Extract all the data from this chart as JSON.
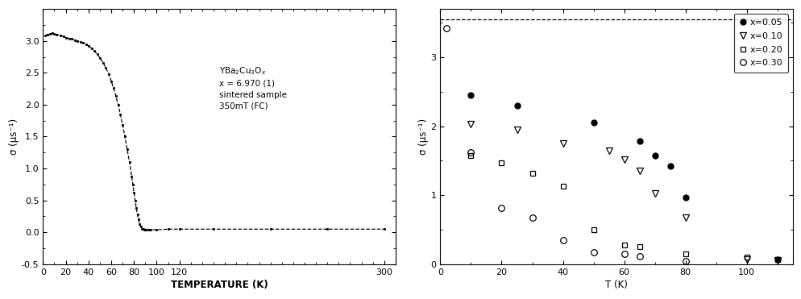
{
  "left_panel": {
    "xlabel": "TEMPERATURE (K)",
    "ylabel": "σ (μs⁻¹)",
    "xlim": [
      0,
      310
    ],
    "ylim": [
      -0.5,
      3.5
    ],
    "yticks": [
      -0.5,
      0.0,
      0.5,
      1.0,
      1.5,
      2.0,
      2.5,
      3.0
    ],
    "xticks": [
      0,
      20,
      40,
      60,
      80,
      100,
      120,
      300
    ],
    "curve_x": [
      2,
      4,
      6,
      8,
      10,
      12,
      15,
      18,
      20,
      23,
      25,
      28,
      30,
      33,
      35,
      38,
      40,
      43,
      45,
      48,
      50,
      53,
      55,
      58,
      60,
      62,
      64,
      66,
      68,
      70,
      72,
      74,
      76,
      78,
      79,
      80,
      81,
      82,
      83,
      84,
      85,
      86,
      87,
      88,
      89,
      90,
      91,
      93,
      95,
      100,
      110,
      120,
      150,
      200,
      250,
      300
    ],
    "curve_y": [
      3.08,
      3.1,
      3.11,
      3.12,
      3.11,
      3.1,
      3.09,
      3.07,
      3.05,
      3.04,
      3.03,
      3.01,
      3.0,
      2.98,
      2.97,
      2.95,
      2.92,
      2.88,
      2.84,
      2.79,
      2.73,
      2.66,
      2.58,
      2.48,
      2.37,
      2.26,
      2.14,
      2.0,
      1.85,
      1.68,
      1.5,
      1.3,
      1.1,
      0.88,
      0.75,
      0.62,
      0.5,
      0.38,
      0.28,
      0.2,
      0.13,
      0.09,
      0.06,
      0.05,
      0.04,
      0.04,
      0.04,
      0.04,
      0.04,
      0.04,
      0.05,
      0.05,
      0.05,
      0.05,
      0.05,
      0.05
    ],
    "ann_text": "YBa$_2$Cu$_3$O$_x$\nx = 6.970 (1)\nsintered sample\n350mT (FC)"
  },
  "right_panel": {
    "xlabel": "T (K)",
    "ylabel": "σ (μs⁻¹)",
    "xlim": [
      0,
      115
    ],
    "ylim": [
      0,
      3.7
    ],
    "yticks": [
      0,
      1,
      2,
      3
    ],
    "xticks": [
      0,
      20,
      40,
      60,
      80,
      100
    ],
    "x005_x": [
      10,
      25,
      50,
      65,
      70,
      75,
      80,
      110
    ],
    "x005_y": [
      2.45,
      2.3,
      2.05,
      1.78,
      1.58,
      1.42,
      0.97,
      0.07
    ],
    "x010_x": [
      10,
      25,
      40,
      55,
      60,
      65,
      70,
      80,
      100,
      110
    ],
    "x010_y": [
      2.03,
      1.95,
      1.75,
      1.65,
      1.52,
      1.35,
      1.03,
      0.68,
      0.07,
      0.06
    ],
    "x020_x": [
      10,
      20,
      30,
      40,
      50,
      60,
      65,
      80,
      100,
      110
    ],
    "x020_y": [
      1.58,
      1.47,
      1.32,
      1.13,
      0.5,
      0.28,
      0.25,
      0.15,
      0.1,
      0.07
    ],
    "x030_x": [
      2,
      10,
      20,
      30,
      40,
      50,
      60,
      65,
      80
    ],
    "x030_y": [
      3.42,
      1.62,
      0.82,
      0.68,
      0.35,
      0.17,
      0.15,
      0.12,
      0.05
    ],
    "dashed_line_y": 3.55
  }
}
